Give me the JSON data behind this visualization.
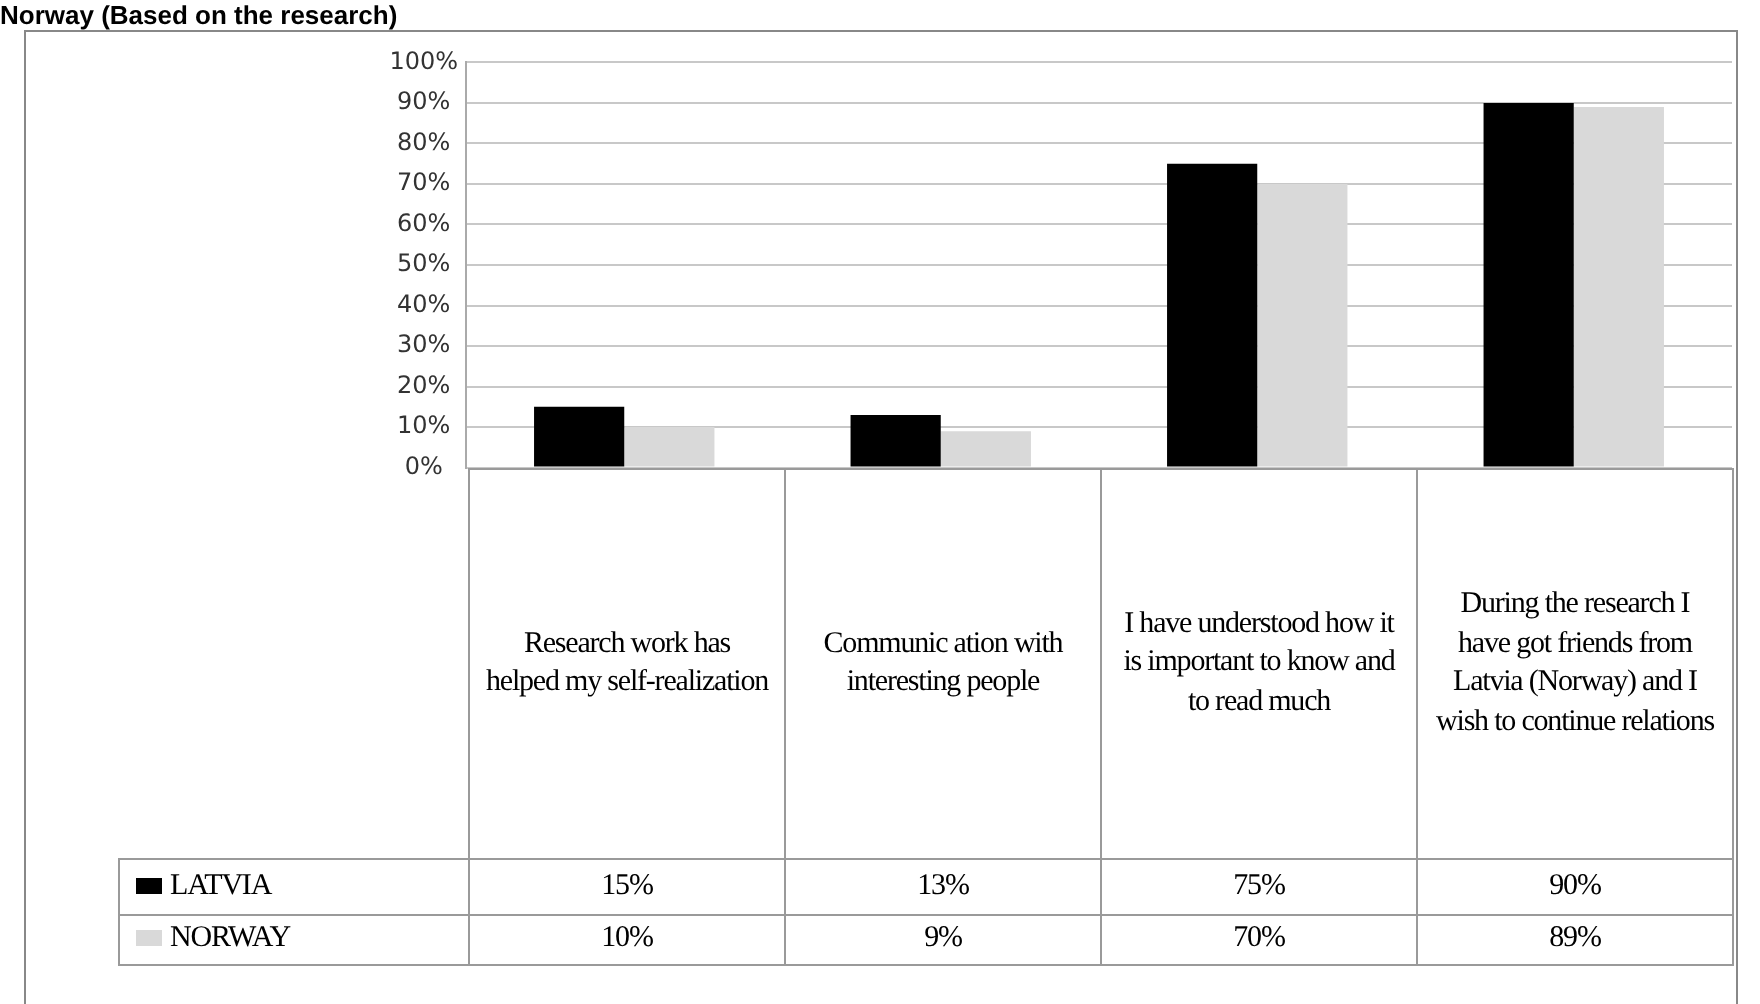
{
  "chart_data": {
    "type": "bar",
    "title": "Norway (Based on the research)",
    "categories": [
      "Research work has helped my self-realization",
      "Communic ation with interesting people",
      "I have understood how it is important to know and to read much",
      "During the research I have got friends from Latvia (Norway) and I wish to continue relations"
    ],
    "series": [
      {
        "name": "LATVIA",
        "color": "#000000",
        "values": [
          15,
          13,
          75,
          90
        ],
        "value_labels": [
          "15%",
          "13%",
          "75%",
          "90%"
        ]
      },
      {
        "name": "NORWAY",
        "color": "#d9d9d9",
        "values": [
          10,
          9,
          70,
          89
        ],
        "value_labels": [
          "10%",
          "9%",
          "70%",
          "89%"
        ]
      }
    ],
    "ylim": [
      0,
      100
    ],
    "yticks": [
      {
        "value": 0,
        "label": "0%"
      },
      {
        "value": 10,
        "label": "10%"
      },
      {
        "value": 20,
        "label": "20%"
      },
      {
        "value": 30,
        "label": "30%"
      },
      {
        "value": 40,
        "label": "40%"
      },
      {
        "value": 50,
        "label": "50%"
      },
      {
        "value": 60,
        "label": "60%"
      },
      {
        "value": 70,
        "label": "70%"
      },
      {
        "value": 80,
        "label": "80%"
      },
      {
        "value": 90,
        "label": "90%"
      },
      {
        "value": 100,
        "label": "100%"
      }
    ],
    "grid": "y",
    "legend": "bottom left"
  }
}
